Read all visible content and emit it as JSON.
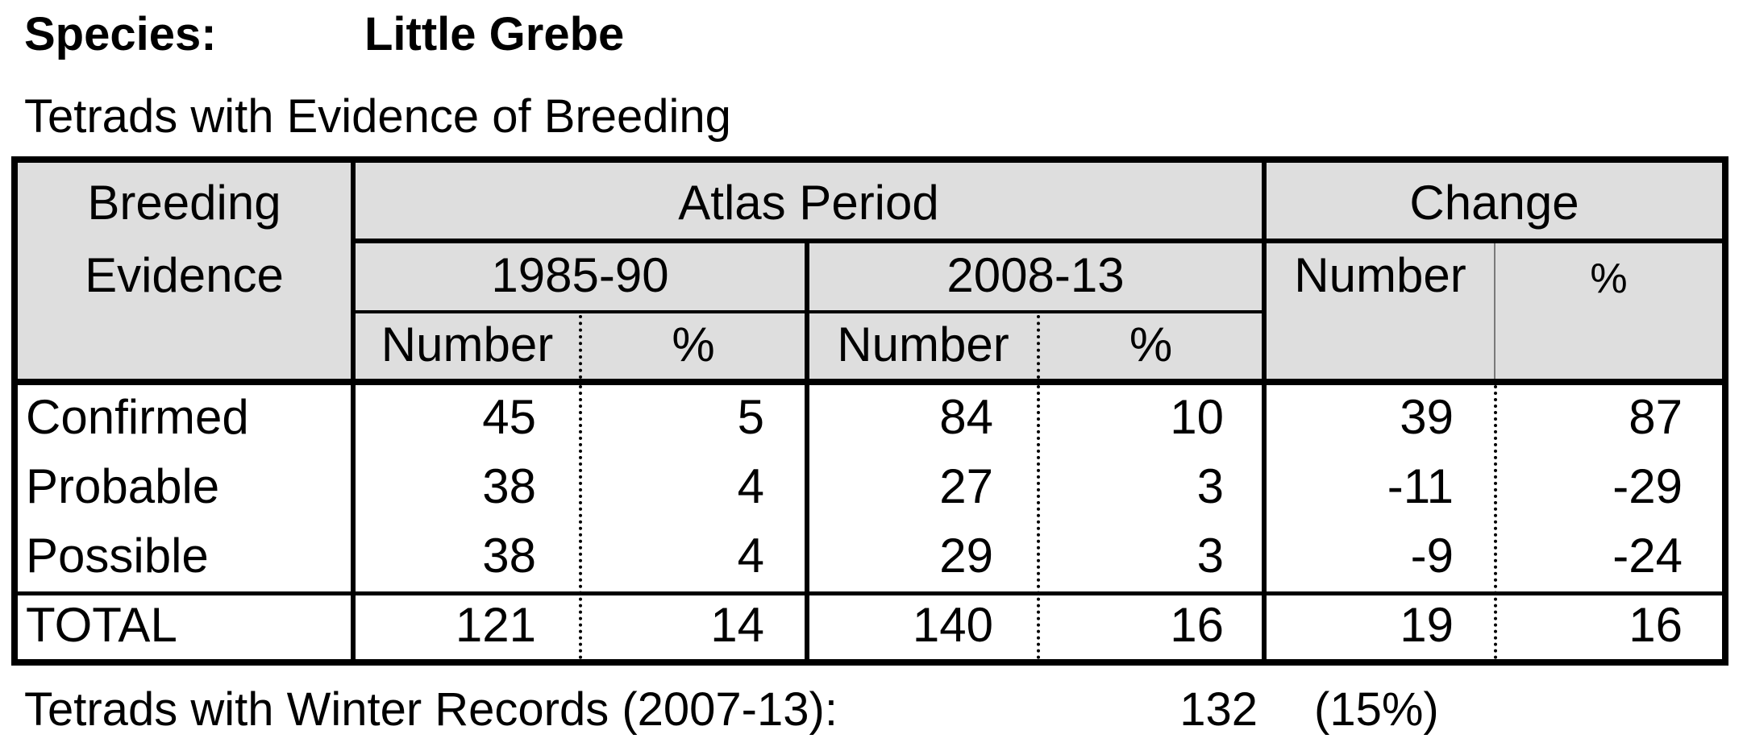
{
  "species": {
    "label": "Species:",
    "name": "Little Grebe"
  },
  "subtitle": "Tetrads with Evidence of Breeding",
  "table": {
    "header": {
      "evidence_line1": "Breeding",
      "evidence_line2": "Evidence",
      "atlas_period": "Atlas Period",
      "change": "Change",
      "period1": "1985-90",
      "period2": "2008-13",
      "number": "Number",
      "percent": "%"
    },
    "rows": [
      {
        "label": "Confirmed",
        "p1_num": "45",
        "p1_pct": "5",
        "p2_num": "84",
        "p2_pct": "10",
        "ch_num": "39",
        "ch_pct": "87"
      },
      {
        "label": "Probable",
        "p1_num": "38",
        "p1_pct": "4",
        "p2_num": "27",
        "p2_pct": "3",
        "ch_num": "-11",
        "ch_pct": "-29"
      },
      {
        "label": "Possible",
        "p1_num": "38",
        "p1_pct": "4",
        "p2_num": "29",
        "p2_pct": "3",
        "ch_num": "-9",
        "ch_pct": "-24"
      }
    ],
    "total": {
      "label": "TOTAL",
      "p1_num": "121",
      "p1_pct": "14",
      "p2_num": "140",
      "p2_pct": "16",
      "ch_num": "19",
      "ch_pct": "16"
    }
  },
  "footer": {
    "label": "Tetrads with Winter Records (2007-13):",
    "count": "132",
    "percent": "(15%)"
  }
}
